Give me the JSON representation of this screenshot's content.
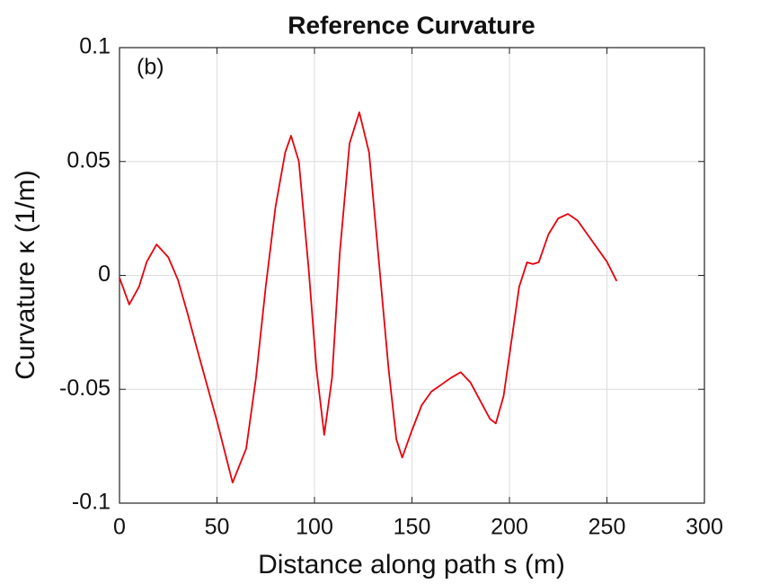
{
  "chart_data": {
    "type": "line",
    "title": "Reference Curvature",
    "annotation": "(b)",
    "xlabel": "Distance along path s (m)",
    "ylabel": "Curvature κ (1/m)",
    "x": [
      0,
      5,
      10,
      14,
      19,
      25,
      30,
      35,
      40,
      50,
      58,
      65,
      70,
      75,
      80,
      85,
      88,
      92,
      97,
      101,
      105,
      109,
      113,
      118,
      123,
      128,
      133,
      138,
      142,
      145,
      150,
      155,
      160,
      165,
      170,
      175,
      180,
      185,
      190,
      193,
      197,
      201,
      205,
      209,
      212,
      215,
      220,
      225,
      230,
      235,
      240,
      245,
      250,
      255
    ],
    "series": [
      {
        "color": "#e8000b",
        "values": [
          -0.001,
          -0.0128,
          -0.005,
          0.006,
          0.0136,
          0.008,
          -0.002,
          -0.017,
          -0.033,
          -0.064,
          -0.091,
          -0.076,
          -0.045,
          -0.005,
          0.03,
          0.054,
          0.0613,
          0.05,
          0.003,
          -0.041,
          -0.07,
          -0.045,
          0.01,
          0.058,
          0.0716,
          0.054,
          0.0065,
          -0.041,
          -0.072,
          -0.08,
          -0.068,
          -0.057,
          -0.051,
          -0.048,
          -0.045,
          -0.0425,
          -0.047,
          -0.055,
          -0.063,
          -0.065,
          -0.053,
          -0.029,
          -0.005,
          0.0057,
          0.005,
          0.0057,
          0.018,
          0.025,
          0.027,
          0.024,
          0.018,
          0.012,
          0.006,
          -0.0025
        ]
      }
    ],
    "xlim": [
      0,
      300
    ],
    "xticks": [
      0,
      50,
      100,
      150,
      200,
      250,
      300
    ],
    "ylim": [
      -0.1,
      0.1
    ],
    "yticks": [
      -0.1,
      -0.05,
      0,
      0.05,
      0.1
    ],
    "grid": true
  }
}
